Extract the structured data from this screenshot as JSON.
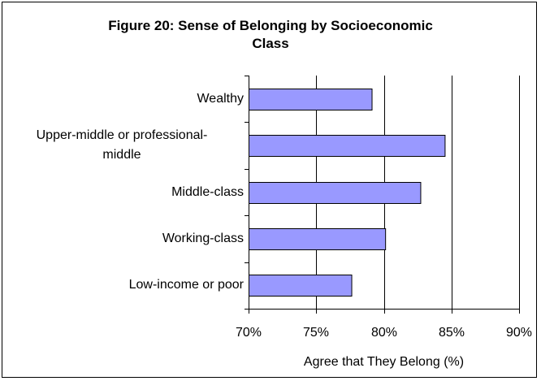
{
  "chart_data": {
    "type": "bar",
    "orientation": "horizontal",
    "title": "Figure 20: Sense of Belonging by Socioeconomic Class",
    "title_lines": [
      "Figure 20: Sense of Belonging by Socioeconomic",
      "Class"
    ],
    "xlabel": "Agree that They Belong (%)",
    "ylabel": "",
    "categories": [
      "Wealthy",
      "Upper-middle or professional-middle",
      "Middle-class",
      "Working-class",
      "Low-income or poor"
    ],
    "category_label_lines": [
      [
        "Wealthy"
      ],
      [
        "Upper-middle or professional-",
        "middle"
      ],
      [
        "Middle-class"
      ],
      [
        "Working-class"
      ],
      [
        "Low-income or poor"
      ]
    ],
    "values": [
      79.1,
      84.5,
      82.7,
      80.1,
      77.6
    ],
    "xlim": [
      70,
      90
    ],
    "x_ticks": [
      70,
      75,
      80,
      85,
      90
    ],
    "x_tick_labels": [
      "70%",
      "75%",
      "80%",
      "85%",
      "90%"
    ],
    "grid": "vertical major gridlines",
    "legend": "none",
    "colors": {
      "bar_fill": "#9999ff",
      "bar_stroke": "#000000",
      "gridline": "#000000"
    }
  }
}
